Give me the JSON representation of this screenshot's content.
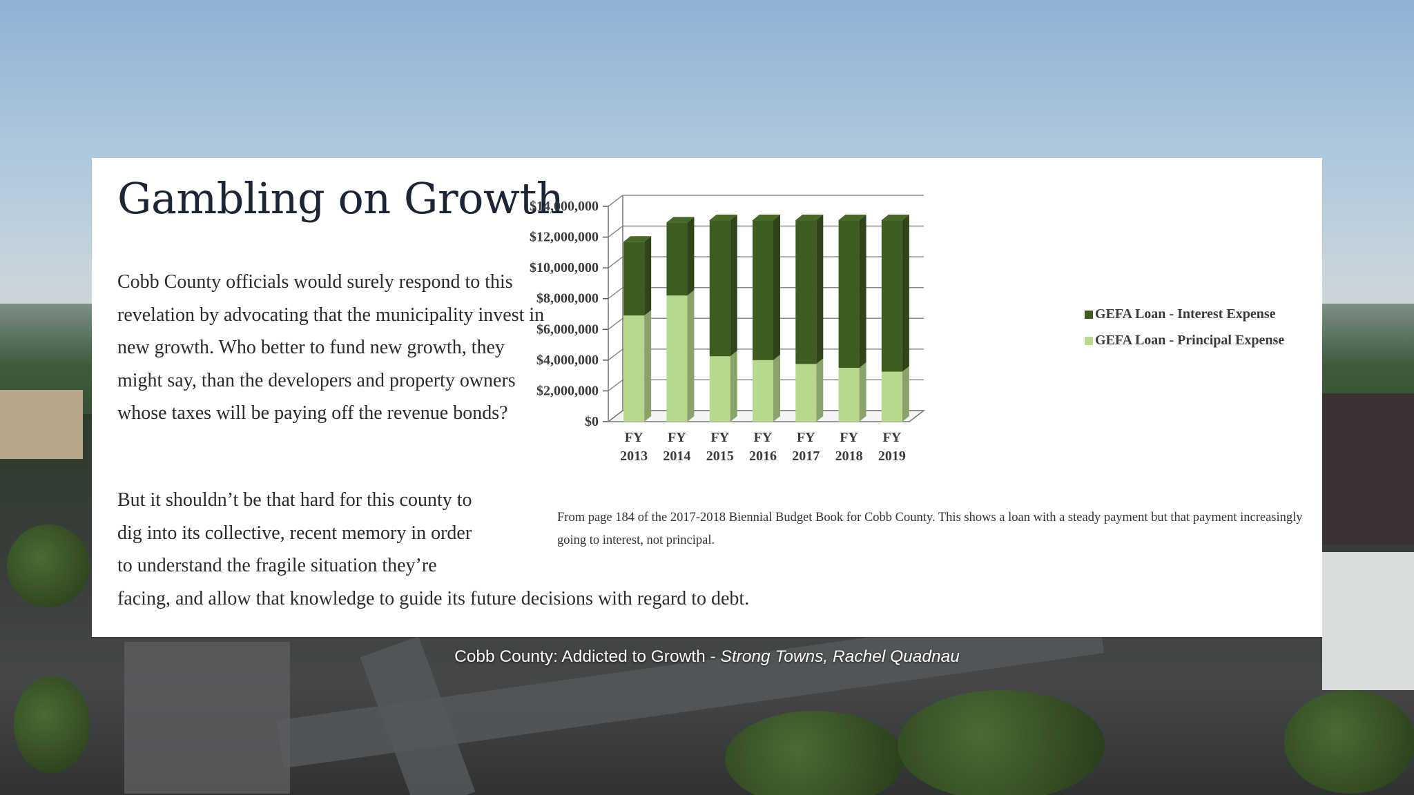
{
  "article": {
    "title": "Gambling on Growth",
    "paragraph1": "Cobb County officials would surely respond to this revelation by advocating that the municipality invest in new growth. Who better to fund new growth, they might say, than the developers and property owners whose taxes will be paying off the revenue bonds?",
    "paragraph2_lines": [
      "But it shouldn’t be that hard for this county to",
      "dig into its collective, recent memory in order",
      "to understand the fragile situation they’re",
      "facing, and allow that knowledge to guide its future decisions with regard to debt."
    ],
    "caption": "From page 184 of the 2017-2018 Biennial Budget Book for Cobb County. This shows a loan with a steady payment but that payment increasingly going to interest, not principal."
  },
  "credit": {
    "title": "Cobb County: Addicted to Growth",
    "separator": " - ",
    "source": "Strong Towns, Rachel Quadnau"
  },
  "chart_data": {
    "type": "bar",
    "stacked": true,
    "style": "3d",
    "categories": [
      [
        "FY",
        "2013"
      ],
      [
        "FY",
        "2014"
      ],
      [
        "FY",
        "2015"
      ],
      [
        "FY",
        "2016"
      ],
      [
        "FY",
        "2017"
      ],
      [
        "FY",
        "2018"
      ],
      [
        "FY",
        "2019"
      ]
    ],
    "series": [
      {
        "name": "GEFA Loan - Principal Expense",
        "color": "#b8d88e",
        "values": [
          6900000,
          8200000,
          4250000,
          4000000,
          3750000,
          3500000,
          3250000
        ]
      },
      {
        "name": "GEFA Loan - Interest Expense",
        "color": "#3e5b20",
        "values": [
          4800000,
          4750000,
          8850000,
          9100000,
          9350000,
          9600000,
          9850000
        ]
      }
    ],
    "y_tick_labels": [
      "$0",
      "$2,000,000",
      "$4,000,000",
      "$6,000,000",
      "$8,000,000",
      "$10,000,000",
      "$12,000,000",
      "$14,000,000"
    ],
    "ylim": [
      0,
      14000000
    ],
    "grid": true,
    "legend": "right"
  },
  "colors": {
    "title": "#1b2536",
    "interest": "#3e5b20",
    "principal": "#b8d88e"
  }
}
